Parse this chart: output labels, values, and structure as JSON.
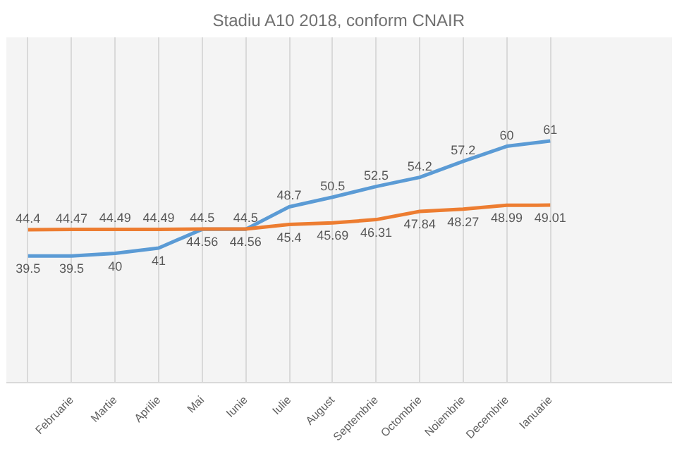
{
  "chart_data": {
    "type": "line",
    "title": "Stadiu A10 2018, conform CNAIR",
    "categories": [
      null,
      "Februarie",
      "Martie",
      "Aprilie",
      "Mai",
      "Iunie",
      "Iulie",
      "August",
      "Septembrie",
      "Octombrie",
      "Noiembrie",
      "Decembrie",
      "Ianuarie"
    ],
    "series": [
      {
        "color": "#5b9bd5",
        "values": [
          39.5,
          39.5,
          40,
          41,
          44.5,
          44.5,
          48.7,
          50.5,
          52.5,
          54.2,
          57.2,
          60,
          61
        ]
      },
      {
        "color": "#ed7d31",
        "values": [
          44.4,
          44.47,
          44.49,
          44.49,
          44.56,
          44.56,
          45.4,
          45.69,
          46.31,
          47.84,
          48.27,
          48.99,
          49.01
        ]
      }
    ],
    "data_labels": true,
    "grid": "x",
    "marker": "none",
    "line_style": "solid"
  }
}
